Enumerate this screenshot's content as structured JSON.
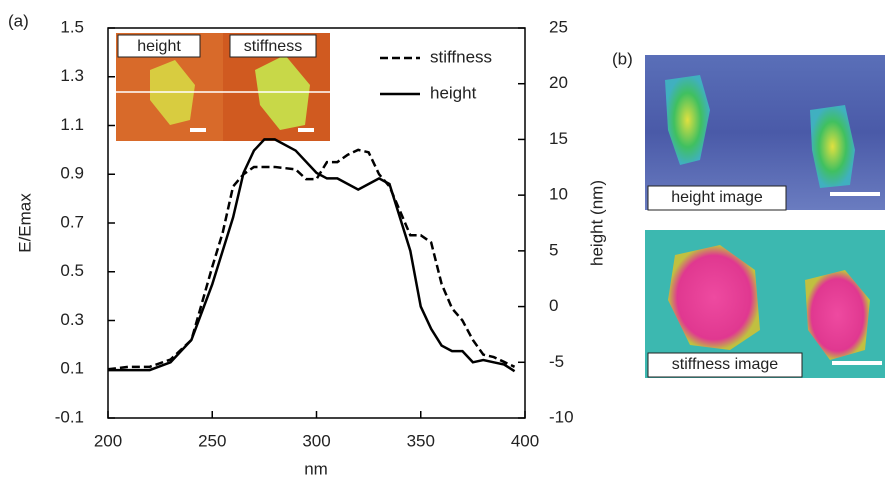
{
  "chart_data": {
    "type": "line",
    "xlabel": "nm",
    "ylabel": "E/Emax",
    "y2label": "height (nm)",
    "xlim": [
      200,
      400
    ],
    "xticks": [
      200,
      250,
      300,
      350,
      400
    ],
    "ylim": [
      -0.1,
      1.5
    ],
    "yticks": [
      -0.1,
      0.1,
      0.3,
      0.5,
      0.7,
      0.9,
      1.1,
      1.3,
      1.5
    ],
    "y2lim": [
      -10,
      25
    ],
    "y2ticks": [
      -10,
      -5,
      0,
      5,
      10,
      15,
      20,
      25
    ],
    "legend": "upper right",
    "series": [
      {
        "name": "stiffness",
        "color": "#000000",
        "dash": true,
        "x": [
          200,
          210,
          220,
          230,
          240,
          250,
          255,
          260,
          265,
          270,
          280,
          290,
          295,
          300,
          305,
          310,
          315,
          320,
          325,
          330,
          335,
          340,
          345,
          350,
          355,
          360,
          365,
          370,
          375,
          380,
          385,
          390,
          395
        ],
        "values": [
          0.1,
          0.11,
          0.11,
          0.14,
          0.22,
          0.52,
          0.66,
          0.85,
          0.9,
          0.93,
          0.93,
          0.92,
          0.88,
          0.88,
          0.95,
          0.95,
          0.98,
          1.0,
          0.99,
          0.9,
          0.85,
          0.75,
          0.65,
          0.65,
          0.62,
          0.45,
          0.35,
          0.3,
          0.22,
          0.16,
          0.15,
          0.13,
          0.11
        ]
      },
      {
        "name": "height",
        "color": "#000000",
        "dash": false,
        "axis": "y2",
        "x": [
          200,
          210,
          220,
          230,
          240,
          250,
          260,
          265,
          270,
          275,
          280,
          290,
          300,
          305,
          310,
          320,
          325,
          330,
          335,
          340,
          345,
          350,
          355,
          360,
          365,
          370,
          375,
          380,
          385,
          390,
          395
        ],
        "values": [
          -5.7,
          -5.7,
          -5.7,
          -5,
          -3,
          2,
          8,
          12,
          14,
          15,
          15,
          14,
          12,
          11.5,
          11.5,
          10.5,
          11,
          11.5,
          11,
          8,
          5,
          0,
          -2,
          -3.5,
          -4,
          -4,
          -5,
          -4.8,
          -5,
          -5.2,
          -5.8
        ]
      }
    ]
  },
  "panel_labels": [
    "(a)",
    "(b)"
  ],
  "inset_labels": [
    "height",
    "stiffness"
  ],
  "image_labels": [
    "height image",
    "stiffness image"
  ]
}
